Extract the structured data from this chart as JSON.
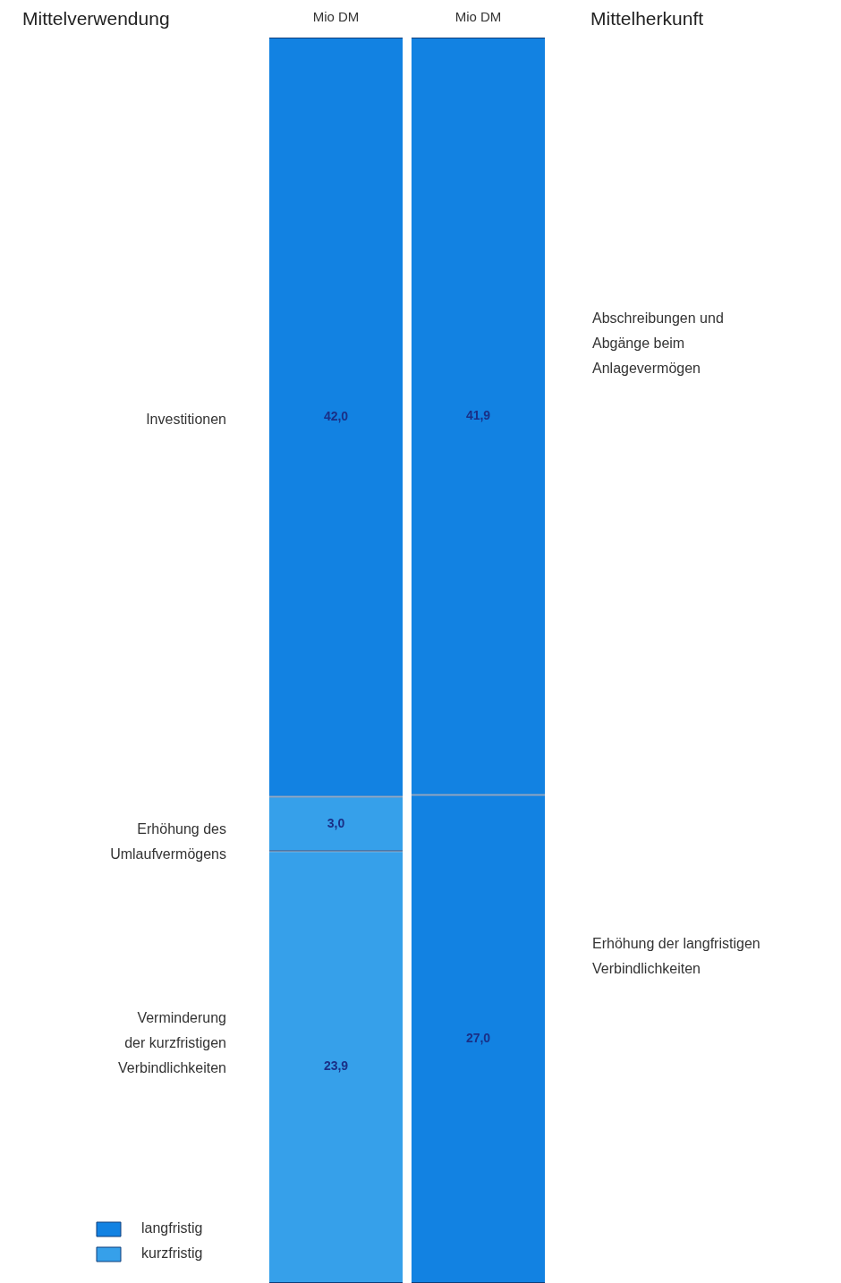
{
  "chart_data": {
    "type": "bar",
    "stacked": true,
    "categories": [
      "Mittelverwendung",
      "Mittelherkunft"
    ],
    "series": [
      {
        "name": "langfristig",
        "color": "#1282e2",
        "values": [
          null,
          27.0
        ],
        "value_labels": [
          null,
          "27,0"
        ]
      },
      {
        "name": "kurzfristig",
        "color": "#36a0ea",
        "values": [
          23.9,
          null
        ],
        "value_labels": [
          "23,9",
          null
        ]
      },
      {
        "color": "#36a0ea",
        "values": [
          3.0,
          null
        ],
        "value_labels": [
          "3,0",
          null
        ]
      },
      {
        "color": "#1282e2",
        "values": [
          42.0,
          41.9
        ],
        "value_labels": [
          "42,0",
          "41,9"
        ]
      }
    ],
    "ylim": [
      0,
      68.9
    ],
    "tick_labels": "x",
    "legend": "bottom left",
    "annotations": [
      "Mio DM",
      "Mio DM",
      "Investitionen",
      "Erhöhung des\nUmlaufvermögens",
      "Verminderung\nder kurzfristigen\nVerbindlichkeiten",
      "Abschreibungen und\nAbgänge beim\nAnlagevermögen",
      "Erhöhung der langfristigen\nVerbindlichkeiten"
    ]
  }
}
